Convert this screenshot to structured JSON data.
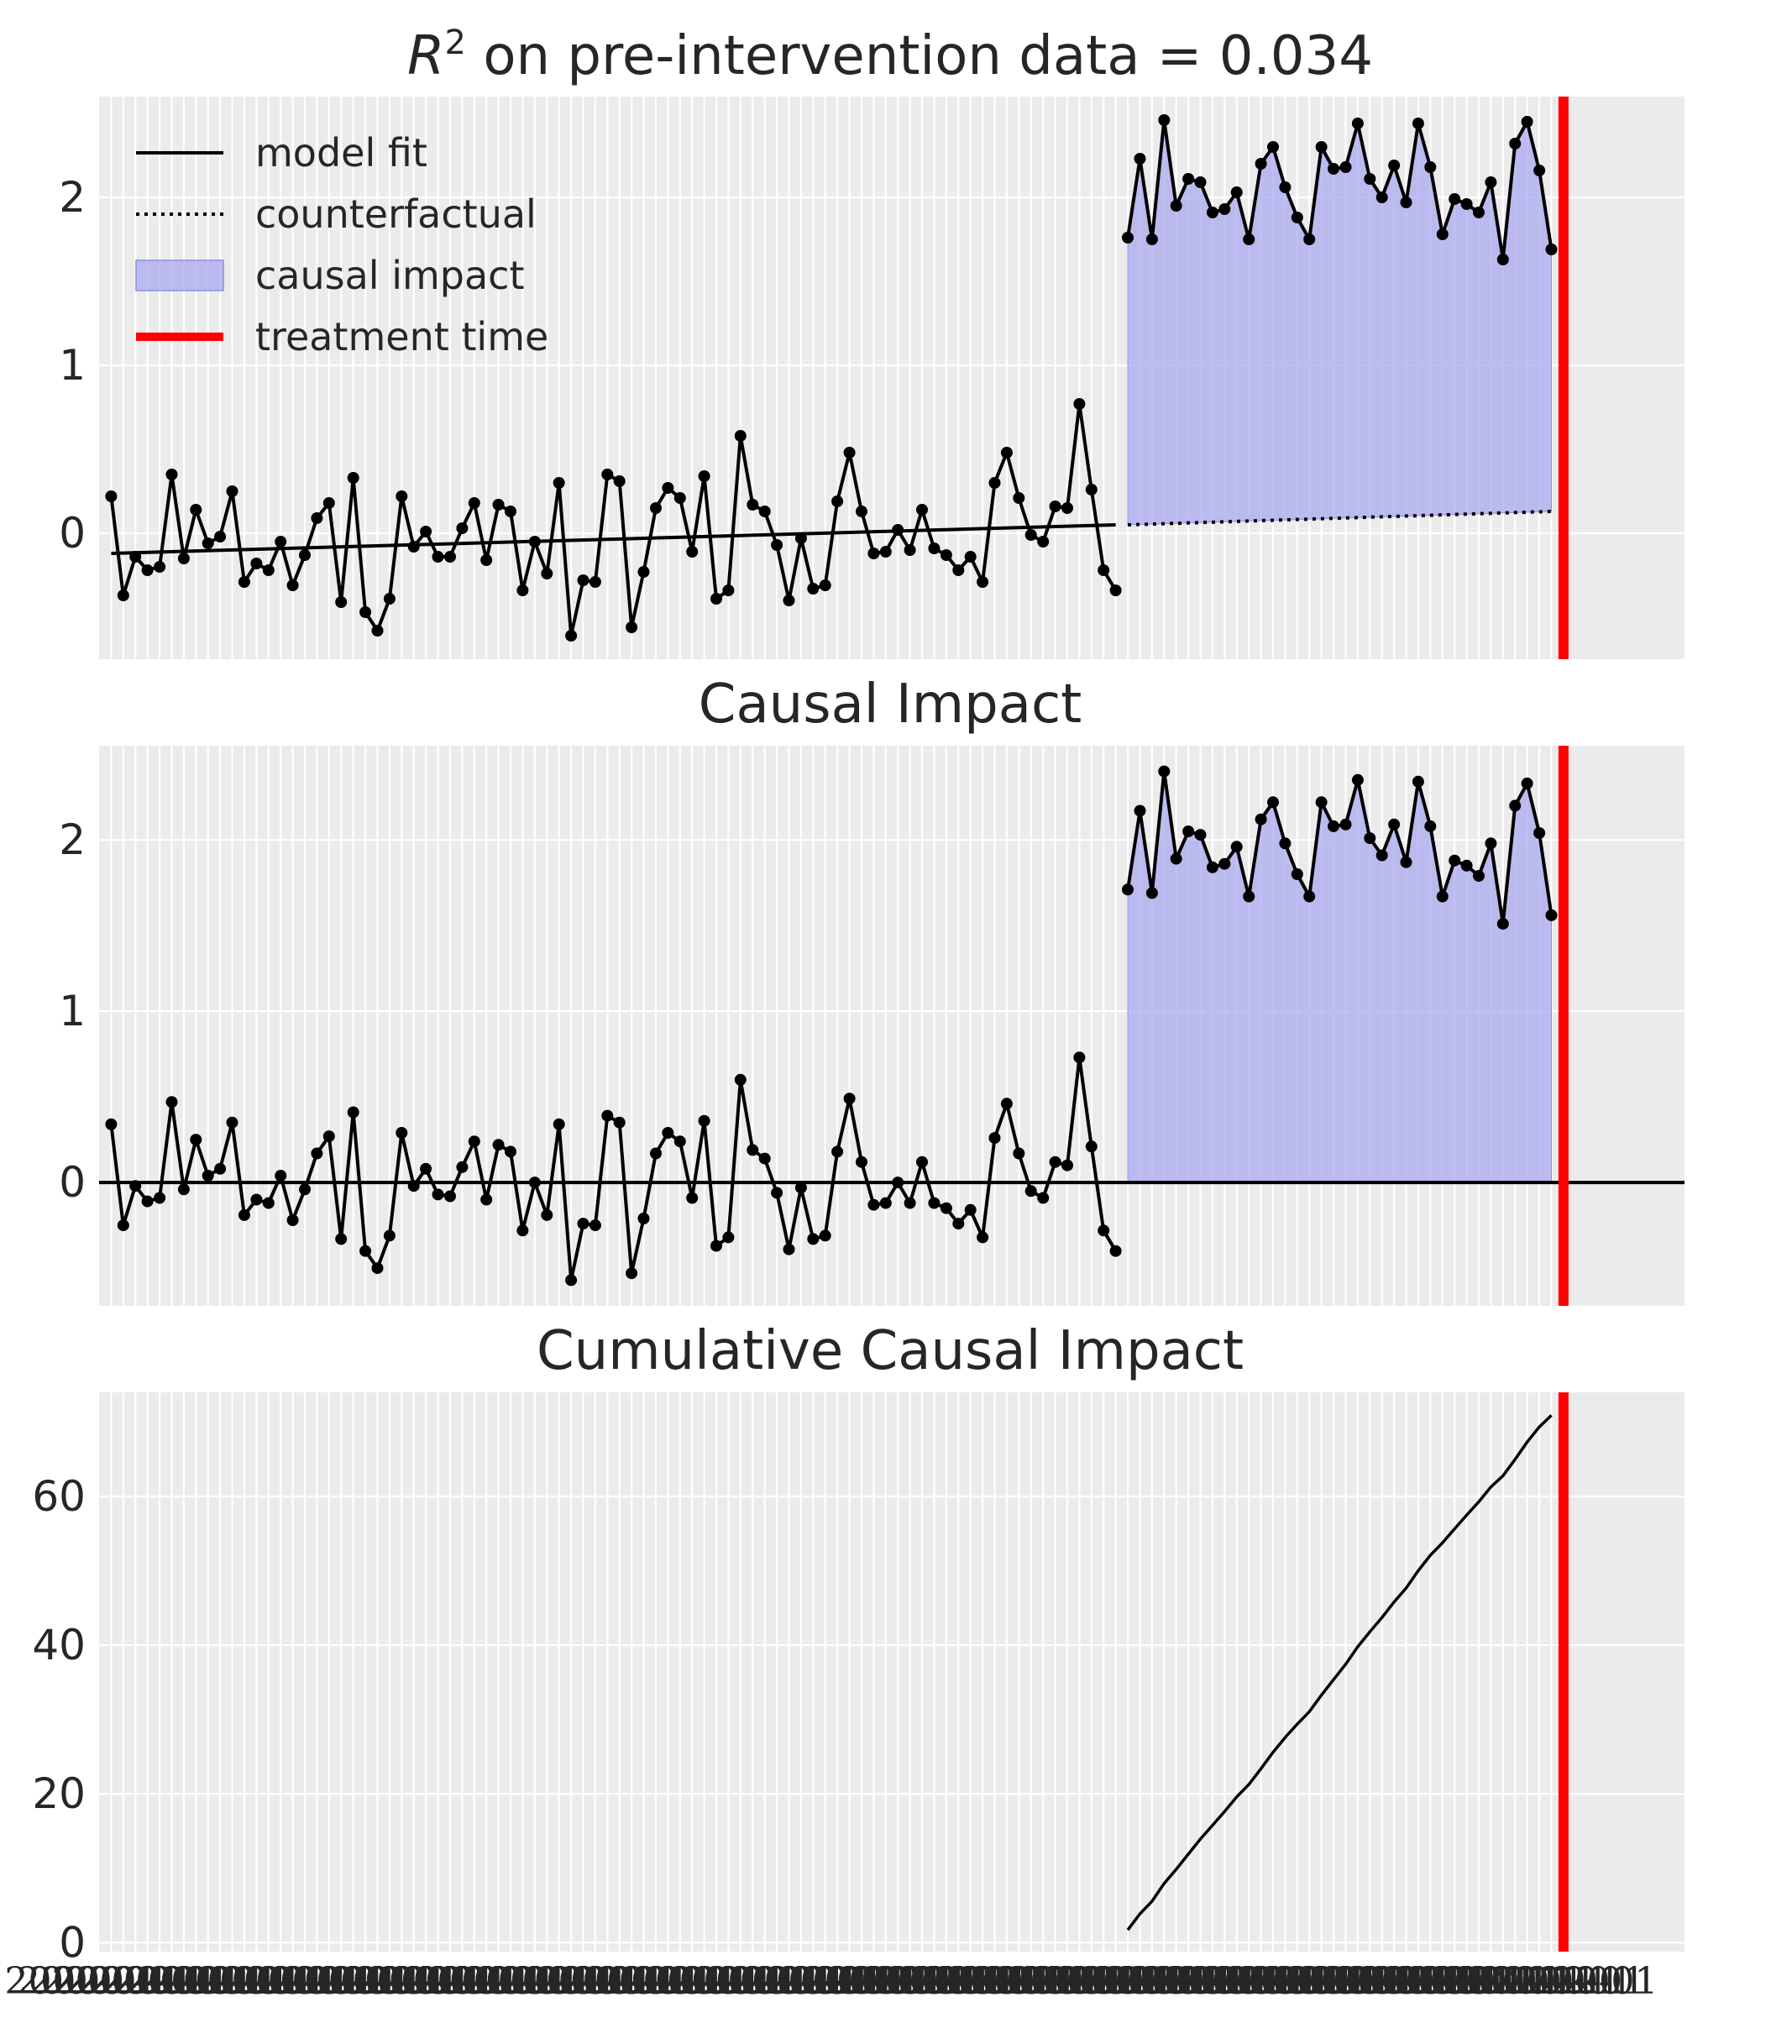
{
  "colors": {
    "background": "#ebebeb",
    "grid": "#ffffff",
    "line": "#000000",
    "impact_fill": "#aaaaf0",
    "impact_edge": "#8c8ce0",
    "treatment": "#ff0000",
    "text": "#262626"
  },
  "chart_data": [
    {
      "type": "line",
      "title_prefix": "R",
      "title_superscript": "2",
      "title_suffix": " on pre-intervention data = 0.034",
      "ylim": [
        -0.75,
        2.6
      ],
      "yticks": [
        0,
        1,
        2
      ],
      "grid": true,
      "legend_placement": "top-left",
      "legend": [
        {
          "label": "model fit",
          "style": "solid-line"
        },
        {
          "label": "counterfactual",
          "style": "dotted-line"
        },
        {
          "label": "causal impact",
          "style": "shaded-area"
        },
        {
          "label": "treatment time",
          "style": "red-line"
        }
      ],
      "x_range": [
        -1,
        130
      ],
      "treatment_index": 120,
      "observed": [
        0.22,
        -0.37,
        -0.14,
        -0.22,
        -0.2,
        0.35,
        -0.15,
        0.14,
        -0.06,
        -0.02,
        0.25,
        -0.29,
        -0.18,
        -0.22,
        -0.05,
        -0.31,
        -0.13,
        0.09,
        0.18,
        -0.41,
        0.33,
        -0.47,
        -0.58,
        -0.39,
        0.22,
        -0.08,
        0.01,
        -0.14,
        -0.14,
        0.03,
        0.18,
        -0.16,
        0.17,
        0.13,
        -0.34,
        -0.05,
        -0.24,
        0.3,
        -0.61,
        -0.28,
        -0.29,
        0.35,
        0.31,
        -0.56,
        -0.23,
        0.15,
        0.27,
        0.21,
        -0.11,
        0.34,
        -0.39,
        -0.34,
        0.58,
        0.17,
        0.13,
        -0.07,
        -0.4,
        -0.03,
        -0.33,
        -0.31,
        0.19,
        0.48,
        0.13,
        -0.12,
        -0.11,
        0.02,
        -0.1,
        0.14,
        -0.09,
        -0.13,
        -0.22,
        -0.14,
        -0.29,
        0.3,
        0.48,
        0.21,
        -0.01,
        -0.05,
        0.16,
        0.15,
        0.77,
        0.26,
        -0.22,
        -0.34,
        1.76,
        2.23,
        1.75,
        2.46,
        1.95,
        2.11,
        2.09,
        1.91,
        1.93,
        2.03,
        1.75,
        2.2,
        2.3,
        2.06,
        1.88,
        1.75,
        2.3,
        2.17,
        2.18,
        2.44,
        2.11,
        2.0,
        2.19,
        1.97,
        2.44,
        2.18,
        1.78,
        1.99,
        1.96,
        1.91,
        2.09,
        1.63,
        2.32,
        2.45,
        2.16,
        1.69
      ],
      "fit_line": [
        [
          0,
          -0.12
        ],
        [
          83,
          0.05
        ]
      ],
      "counterfactual_line": [
        [
          84,
          0.05
        ],
        [
          119,
          0.13
        ]
      ]
    },
    {
      "type": "line",
      "title": "Causal Impact",
      "ylim": [
        -0.72,
        2.55
      ],
      "yticks": [
        0,
        1,
        2
      ],
      "grid": true,
      "x_range": [
        -1,
        130
      ],
      "treatment_index": 120,
      "zero_line": 0,
      "impact": [
        0.34,
        -0.25,
        -0.02,
        -0.11,
        -0.09,
        0.47,
        -0.04,
        0.25,
        0.04,
        0.08,
        0.35,
        -0.19,
        -0.1,
        -0.12,
        0.04,
        -0.22,
        -0.04,
        0.17,
        0.27,
        -0.33,
        0.41,
        -0.4,
        -0.5,
        -0.31,
        0.29,
        -0.02,
        0.08,
        -0.07,
        -0.08,
        0.09,
        0.24,
        -0.1,
        0.22,
        0.18,
        -0.28,
        0.0,
        -0.19,
        0.34,
        -0.57,
        -0.24,
        -0.25,
        0.39,
        0.35,
        -0.53,
        -0.21,
        0.17,
        0.29,
        0.24,
        -0.09,
        0.36,
        -0.37,
        -0.32,
        0.6,
        0.19,
        0.14,
        -0.06,
        -0.39,
        -0.03,
        -0.33,
        -0.31,
        0.18,
        0.49,
        0.12,
        -0.13,
        -0.12,
        0.0,
        -0.12,
        0.12,
        -0.12,
        -0.15,
        -0.24,
        -0.16,
        -0.32,
        0.26,
        0.46,
        0.17,
        -0.05,
        -0.09,
        0.12,
        0.1,
        0.73,
        0.21,
        -0.28,
        -0.4,
        1.71,
        2.17,
        1.69,
        2.4,
        1.89,
        2.05,
        2.03,
        1.84,
        1.86,
        1.96,
        1.67,
        2.12,
        2.22,
        1.98,
        1.8,
        1.67,
        2.22,
        2.08,
        2.09,
        2.35,
        2.01,
        1.91,
        2.09,
        1.87,
        2.34,
        2.08,
        1.67,
        1.88,
        1.85,
        1.79,
        1.98,
        1.51,
        2.2,
        2.33,
        2.04,
        1.56
      ]
    },
    {
      "type": "line",
      "title": "Cumulative Causal Impact",
      "ylim": [
        -1.2,
        74
      ],
      "yticks": [
        0,
        20,
        40,
        60
      ],
      "grid": true,
      "x_range": [
        -1,
        130
      ],
      "treatment_index": 120,
      "cumulative_start_index": 84,
      "cumulative": [
        1.71,
        3.88,
        5.57,
        7.97,
        9.86,
        11.91,
        13.94,
        15.78,
        17.64,
        19.6,
        21.27,
        23.39,
        25.61,
        27.59,
        29.39,
        31.06,
        33.28,
        35.36,
        37.45,
        39.8,
        41.81,
        43.72,
        45.81,
        47.68,
        50.02,
        52.1,
        53.77,
        55.65,
        57.5,
        59.29,
        61.27,
        62.78,
        64.98,
        67.31,
        69.35,
        70.91
      ]
    }
  ],
  "x_axis": {
    "tick_count": 120,
    "tick_label_sample_left": "2020-01-01",
    "tick_label_sample_right": "2022-12-01"
  }
}
